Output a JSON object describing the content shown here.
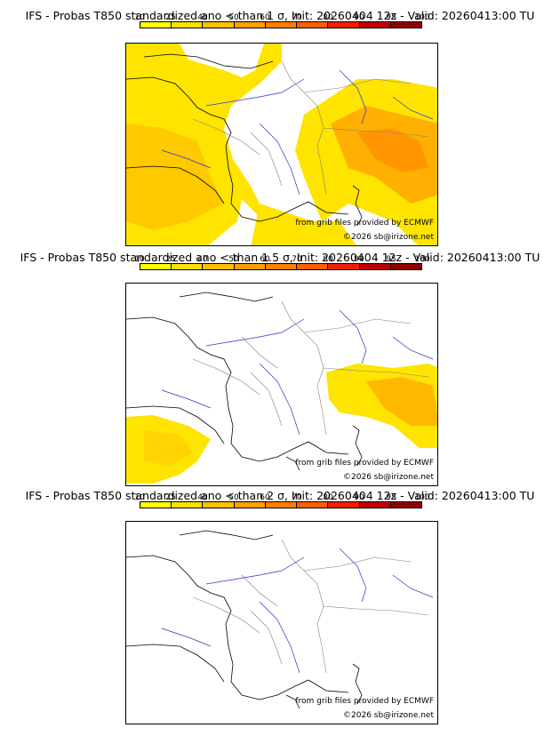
{
  "colors": {
    "c10": "#ffff00",
    "c25": "#ffe000",
    "c40": "#ffc000",
    "c50": "#ffa000",
    "c60": "#ff8000",
    "c70": "#ff6000",
    "c80": "#ee2000",
    "c90": "#c00000",
    "c95": "#900000",
    "c100": "#5a0000"
  },
  "legend_labels": [
    "10",
    "25",
    "40",
    "50",
    "60",
    "70",
    "80",
    "90",
    "95",
    "100"
  ],
  "panels": [
    {
      "title": "IFS - Probas T850  standardized ano < than 1 σ, Init: 20260404 12z - Valid: 20260413:00 TU",
      "credit_source": "from grib files provided by ECMWF",
      "credit_copyright": "©2026 sb@irizone.net"
    },
    {
      "title": "IFS - Probas T850  standardized ano < than 1.5 σ, Init: 20260404 12z - Valid: 20260413:00 TU",
      "credit_source": "from grib files provided by ECMWF",
      "credit_copyright": "©2026 sb@irizone.net"
    },
    {
      "title": "IFS - Probas T850  standardized ano < than 2 σ, Init: 20260404 12z - Valid: 20260413:00 TU",
      "credit_source": "from grib files provided by ECMWF",
      "credit_copyright": "©2026 sb@irizone.net"
    }
  ]
}
